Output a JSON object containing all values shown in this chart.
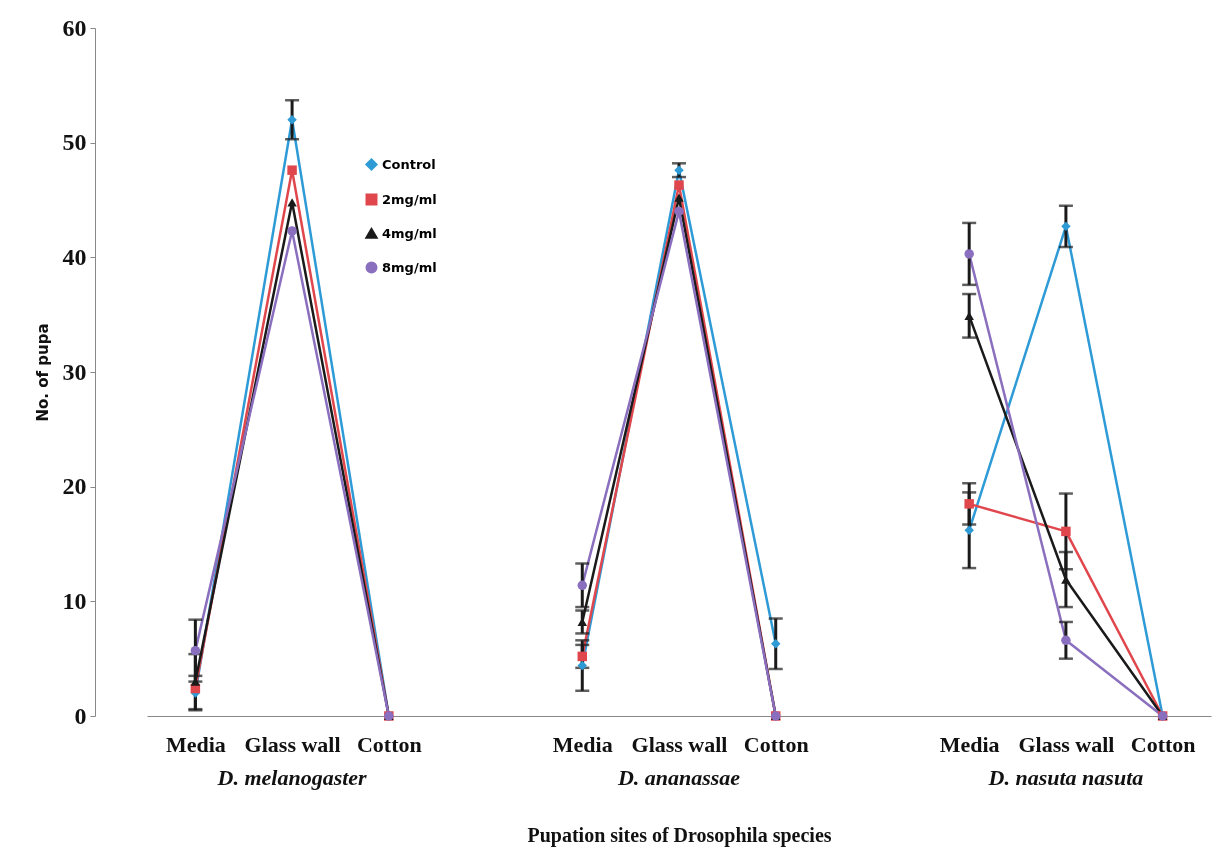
{
  "chart_data": {
    "type": "line",
    "xlabel": "Pupation sites of Drosophila species",
    "ylabel": "No. of pupa",
    "categories": [
      "Media",
      "Glass wall",
      "Cotton",
      null,
      "Media",
      "Glass wall",
      "Cotton",
      null,
      "Media",
      "Glass wall",
      "Cotton"
    ],
    "ylim": [
      0,
      60
    ],
    "yticks": [
      0,
      10,
      20,
      30,
      40,
      50,
      60
    ],
    "grid": false,
    "legend": "top",
    "annotations": [
      "D. melanogaster",
      "D. ananassae",
      "D. nasuta nasuta"
    ],
    "series": [
      {
        "name": "Control",
        "color": "#2e9bd6",
        "marker": "diamond",
        "values": [
          2.0,
          52.0,
          0,
          null,
          4.4,
          47.6,
          6.3,
          null,
          16.2,
          42.7,
          0
        ],
        "errors": [
          1.5,
          1.7,
          null,
          null,
          2.2,
          0.6,
          2.2,
          null,
          3.3,
          1.8,
          null
        ]
      },
      {
        "name": "2mg/ml",
        "color": "#e0474c",
        "marker": "square",
        "values": [
          2.4,
          47.6,
          0,
          null,
          5.2,
          46.3,
          0,
          null,
          18.5,
          16.1,
          0
        ],
        "errors": [
          null,
          null,
          null,
          null,
          1.0,
          null,
          null,
          null,
          1.8,
          3.3,
          null
        ]
      },
      {
        "name": "4mg/ml",
        "color": "#1a1a1a",
        "marker": "triangle",
        "values": [
          3.0,
          44.8,
          0,
          null,
          8.2,
          45.2,
          0,
          null,
          34.9,
          11.9,
          0
        ],
        "errors": [
          2.4,
          null,
          null,
          null,
          1.0,
          null,
          null,
          null,
          1.9,
          2.4,
          null
        ]
      },
      {
        "name": "8mg/ml",
        "color": "#8a6fbf",
        "marker": "circle",
        "values": [
          5.7,
          42.3,
          0,
          null,
          11.4,
          44.0,
          0,
          null,
          40.3,
          6.6,
          0
        ],
        "errors": [
          2.7,
          null,
          null,
          null,
          1.9,
          null,
          null,
          null,
          2.7,
          1.6,
          null
        ]
      }
    ]
  }
}
